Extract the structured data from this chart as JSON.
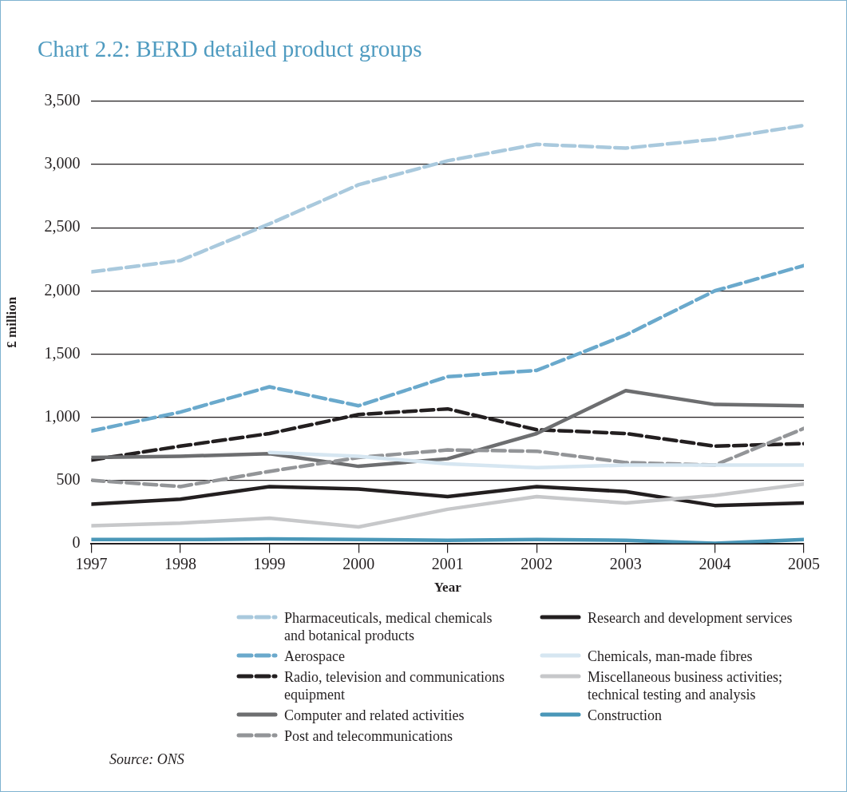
{
  "chart_data": {
    "type": "line",
    "title": "Chart 2.2: BERD detailed product groups",
    "xlabel": "Year",
    "ylabel": "£ million",
    "x": [
      1997,
      1998,
      1999,
      2000,
      2001,
      2002,
      2003,
      2004,
      2005
    ],
    "xlim": [
      1997,
      2005
    ],
    "xticks": [
      1997,
      1998,
      1999,
      2000,
      2001,
      2002,
      2003,
      2004,
      2005
    ],
    "ylim": [
      0,
      3500
    ],
    "yticks": [
      0,
      {
        "value": 500,
        "label": "500"
      },
      {
        "value": 1000,
        "label": "1,000"
      },
      {
        "value": 1500,
        "label": "1,500"
      },
      {
        "value": 2000,
        "label": "2,000"
      },
      {
        "value": 2500,
        "label": "2,500"
      },
      {
        "value": 3000,
        "label": "3,000"
      },
      {
        "value": 3500,
        "label": "3,500"
      }
    ],
    "grid": "y",
    "legend": "bottom",
    "marker": "none",
    "series": [
      {
        "name": "Pharmaceuticals, medical chemicals and botanical products",
        "color": "#a9c9dd",
        "line_style": "dashed",
        "values": [
          2150,
          2240,
          2530,
          2840,
          3030,
          3160,
          3130,
          3200,
          3310
        ]
      },
      {
        "name": "Aerospace",
        "color": "#6aa9cc",
        "line_style": "dashed",
        "values": [
          890,
          1040,
          1240,
          1090,
          1320,
          1370,
          1650,
          2000,
          2200
        ]
      },
      {
        "name": "Radio, television and communications equipment",
        "color": "#231f20",
        "line_style": "dashed",
        "values": [
          660,
          770,
          870,
          1020,
          1065,
          900,
          870,
          770,
          790
        ]
      },
      {
        "name": "Computer and related activities",
        "color": "#6d6e70",
        "line_style": "solid",
        "values": [
          680,
          690,
          710,
          610,
          670,
          870,
          1210,
          1100,
          1090
        ]
      },
      {
        "name": "Post and telecommunications",
        "color": "#939598",
        "line_style": "dashed",
        "values": [
          500,
          450,
          570,
          680,
          740,
          730,
          640,
          620,
          910
        ]
      },
      {
        "name": "Research and development services",
        "color": "#231f20",
        "line_style": "solid",
        "values": [
          310,
          350,
          450,
          430,
          370,
          450,
          410,
          300,
          320
        ]
      },
      {
        "name": "Chemicals, man-made fibres",
        "color": "#d6e6f1",
        "line_style": "solid",
        "values": [
          null,
          null,
          720,
          690,
          630,
          600,
          620,
          620,
          620
        ]
      },
      {
        "name": "Miscellaneous business activities; technical testing and analysis",
        "color": "#c7c8ca",
        "line_style": "solid",
        "values": [
          140,
          160,
          200,
          130,
          270,
          370,
          320,
          380,
          470
        ]
      },
      {
        "name": "Construction",
        "color": "#4a97b8",
        "line_style": "solid",
        "values": [
          30,
          30,
          35,
          30,
          25,
          30,
          25,
          0,
          30
        ]
      }
    ],
    "annotations": [
      "Source: ONS"
    ]
  }
}
